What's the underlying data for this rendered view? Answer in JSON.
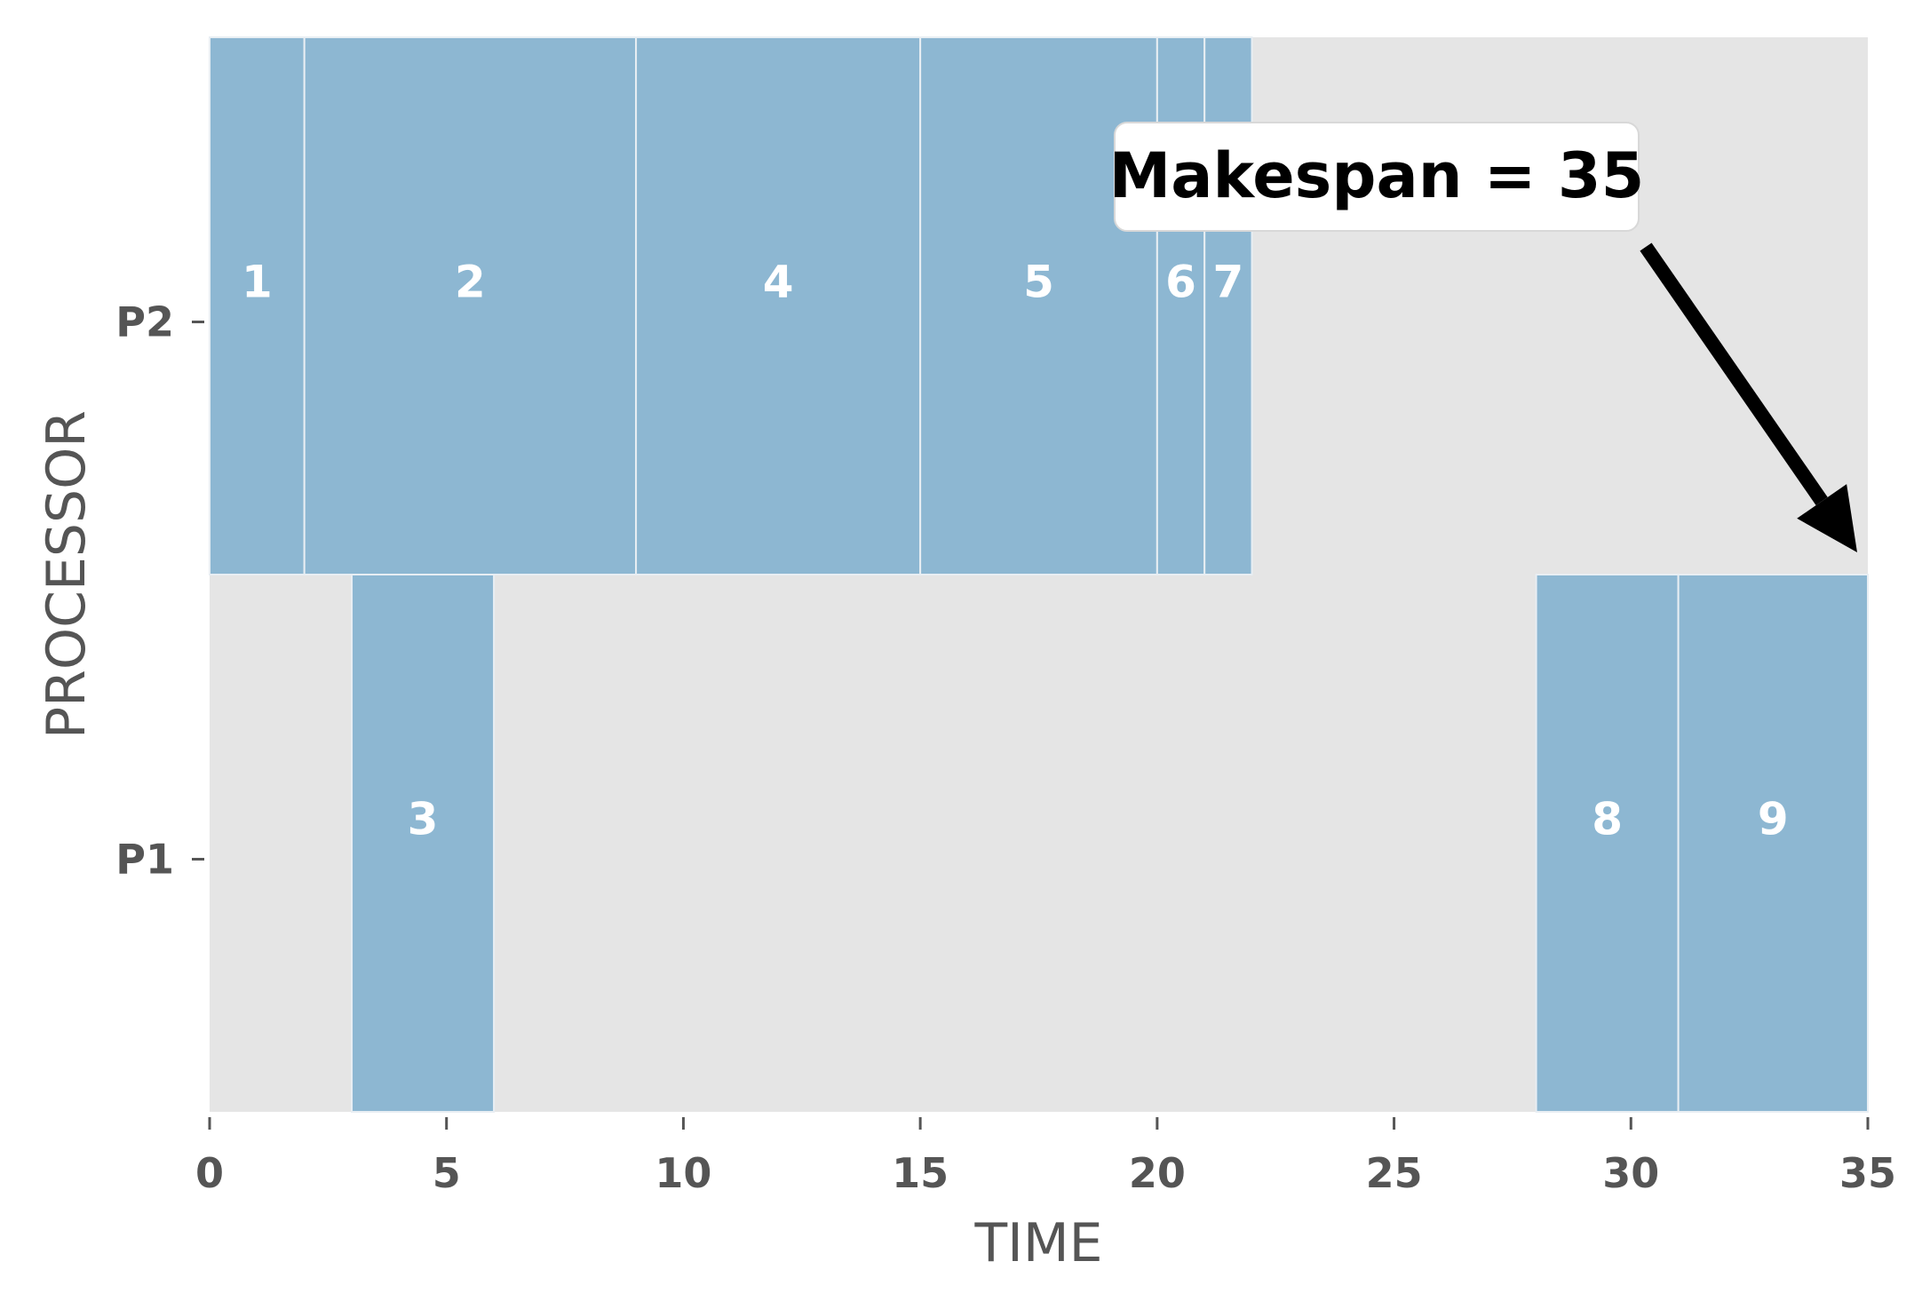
{
  "chart_data": {
    "type": "gantt",
    "xlabel": "TIME",
    "ylabel": "PROCESSOR",
    "xlim": [
      0,
      35
    ],
    "xticks": [
      0,
      5,
      10,
      15,
      20,
      25,
      30,
      35
    ],
    "processors": [
      "P1",
      "P2"
    ],
    "tasks": [
      {
        "label": "1",
        "processor": "P2",
        "start": 0,
        "end": 2
      },
      {
        "label": "2",
        "processor": "P2",
        "start": 2,
        "end": 9
      },
      {
        "label": "4",
        "processor": "P2",
        "start": 9,
        "end": 15
      },
      {
        "label": "5",
        "processor": "P2",
        "start": 15,
        "end": 20
      },
      {
        "label": "6",
        "processor": "P2",
        "start": 20,
        "end": 21
      },
      {
        "label": "7",
        "processor": "P2",
        "start": 21,
        "end": 22
      },
      {
        "label": "3",
        "processor": "P1",
        "start": 3,
        "end": 6
      },
      {
        "label": "8",
        "processor": "P1",
        "start": 28,
        "end": 31
      },
      {
        "label": "9",
        "processor": "P1",
        "start": 31,
        "end": 35
      }
    ],
    "annotation": {
      "text": "Makespan = 35",
      "points_to_time": 35
    },
    "colors": {
      "background": "#e5e5e5",
      "bar": "#8db7d2",
      "bar_edge": "#e8eef3",
      "text": "#555555"
    },
    "grid": false
  }
}
